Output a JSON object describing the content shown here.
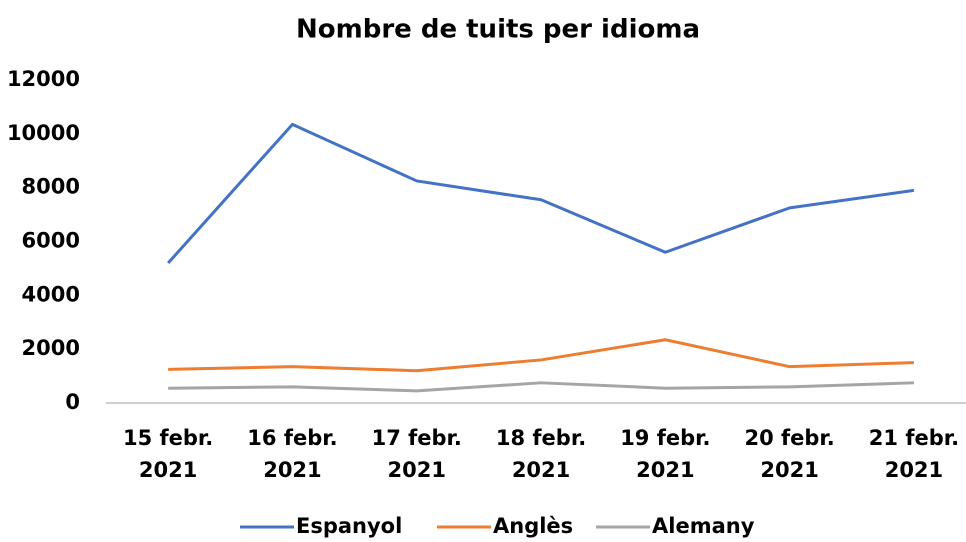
{
  "chart_data": {
    "type": "line",
    "title": "Nombre de tuits per idioma",
    "categories": [
      "15 febr. 2021",
      "16 febr. 2021",
      "17 febr. 2021",
      "18 febr. 2021",
      "19 febr. 2021",
      "20 febr. 2021",
      "21 febr. 2021"
    ],
    "series": [
      {
        "name": "Espanyol",
        "color": "#4472c4",
        "values": [
          5200,
          10350,
          8250,
          7550,
          5600,
          7250,
          7900
        ]
      },
      {
        "name": "Anglès",
        "color": "#ed7d31",
        "values": [
          1250,
          1350,
          1200,
          1600,
          2350,
          1350,
          1500
        ]
      },
      {
        "name": "Alemany",
        "color": "#a5a5a5",
        "values": [
          550,
          600,
          450,
          750,
          550,
          600,
          750
        ]
      }
    ],
    "ylim": [
      0,
      12000
    ],
    "yticks": [
      0,
      2000,
      4000,
      6000,
      8000,
      10000,
      12000
    ],
    "grid": false,
    "legend": "bottom"
  }
}
